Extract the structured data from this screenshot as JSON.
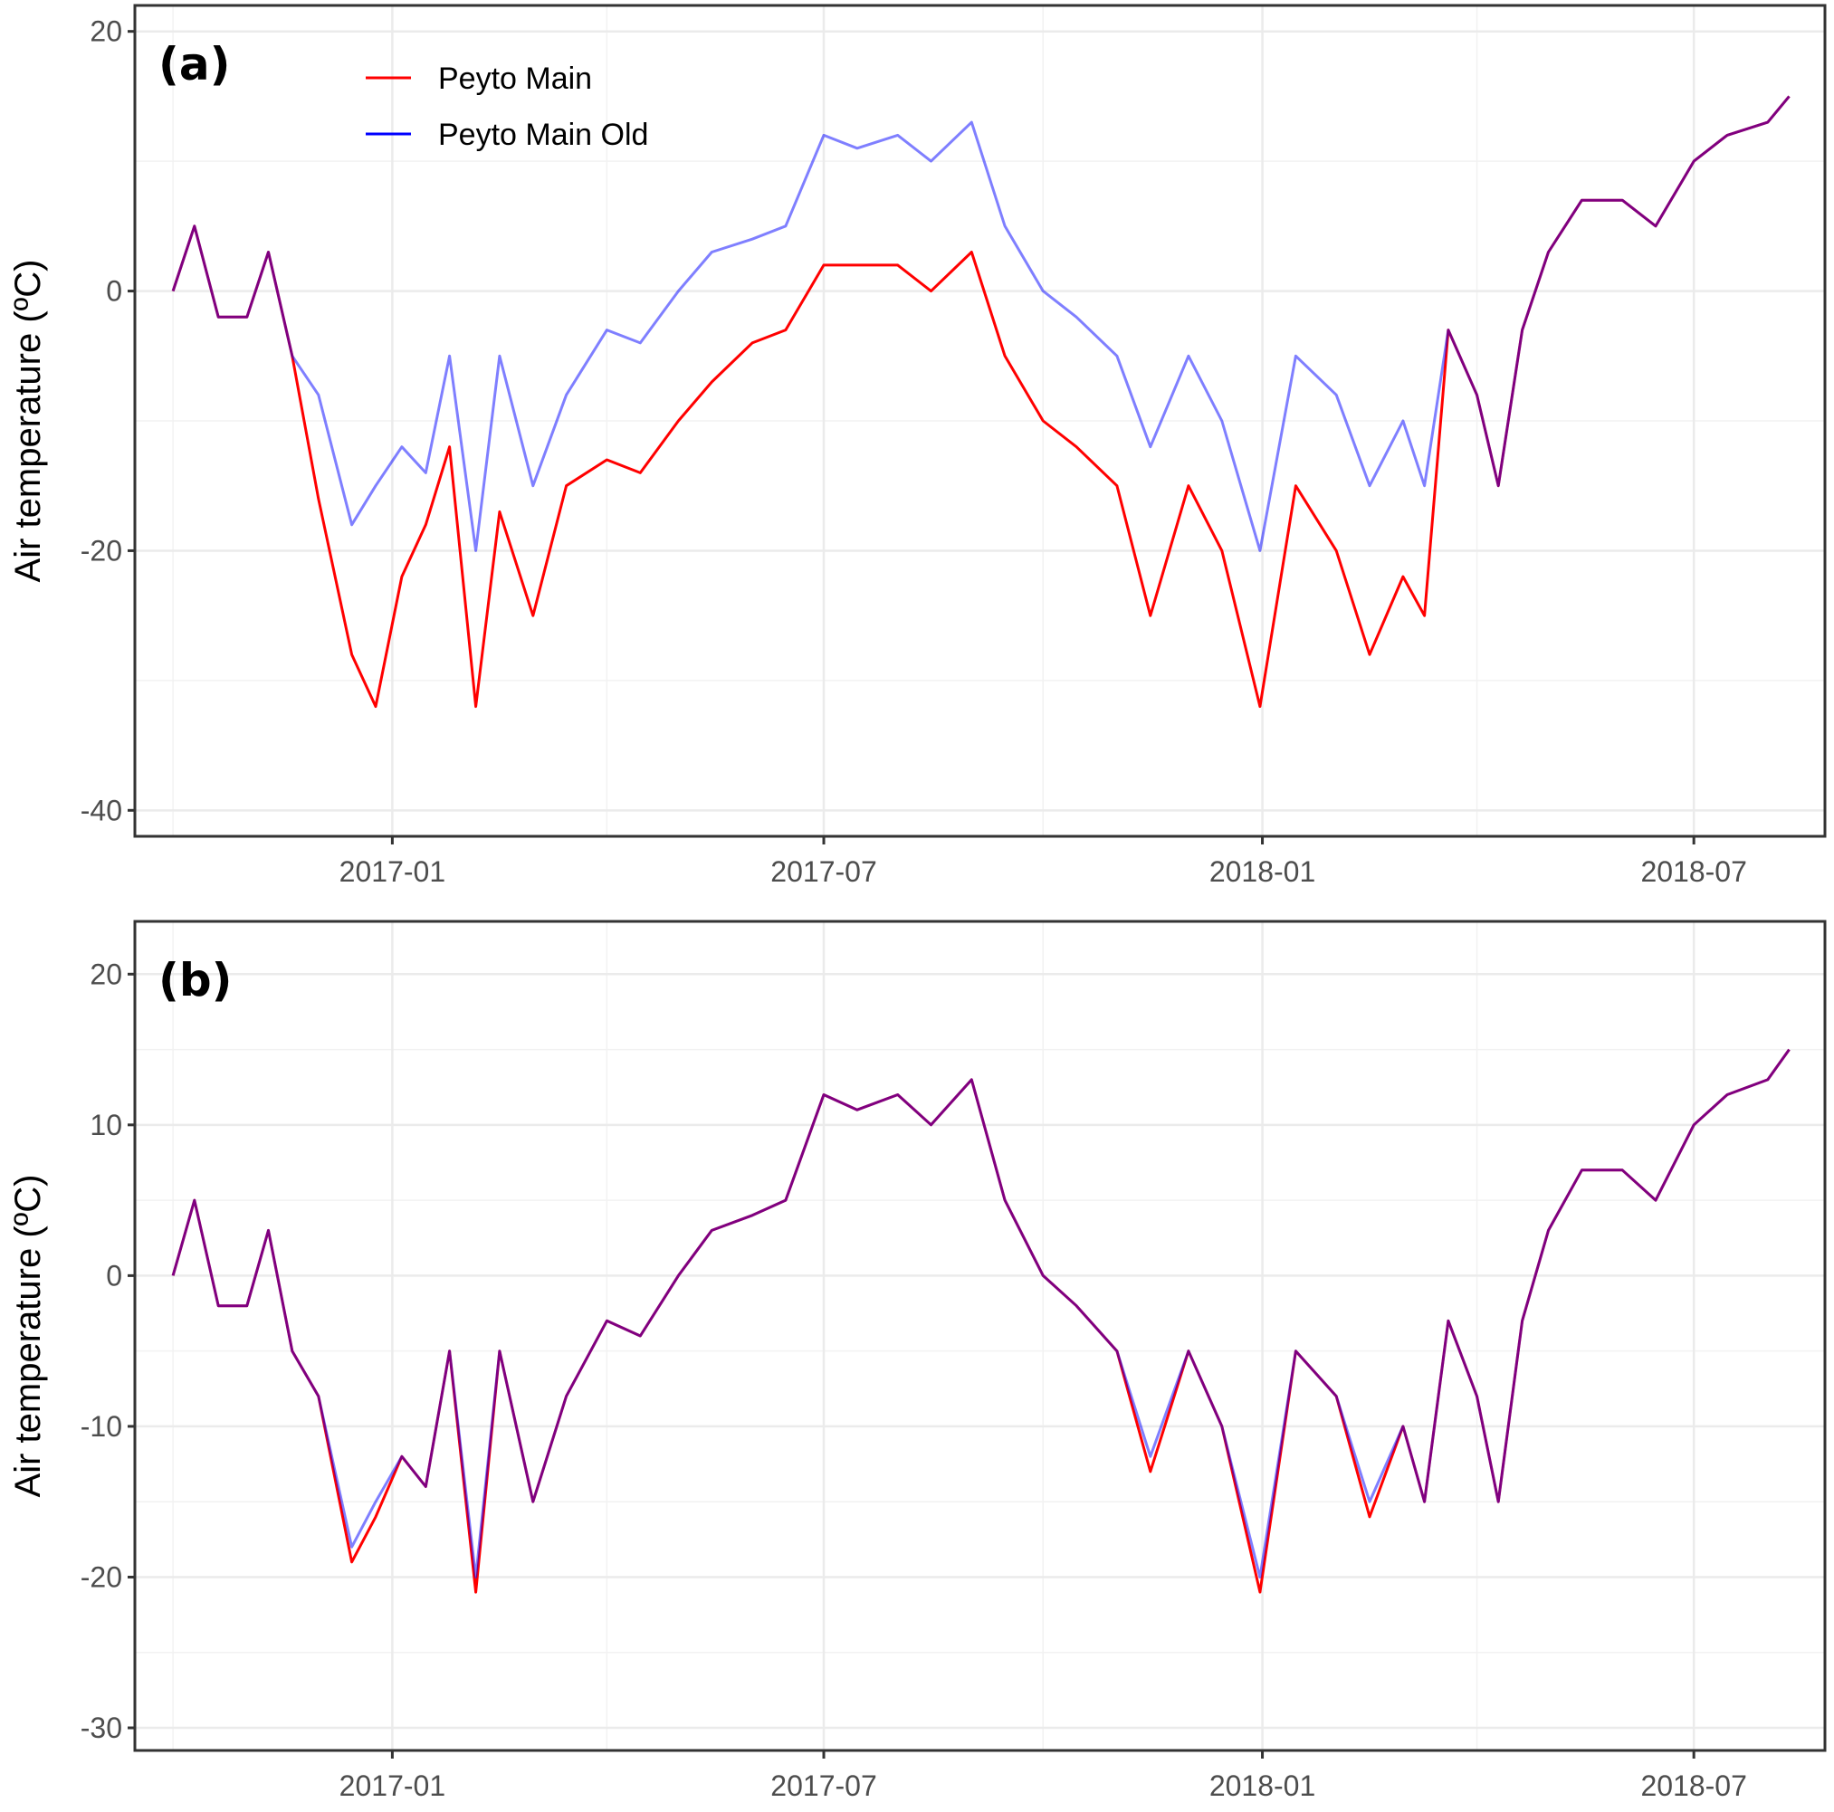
{
  "chart_data": [
    {
      "type": "line",
      "panel_label": "(a)",
      "ylabel": "Air temperature (ºC)",
      "xlabel": "",
      "xlim": [
        "2016-09-15",
        "2018-08-25"
      ],
      "ylim": [
        -42,
        22
      ],
      "yticks": [
        -40,
        -20,
        0,
        20
      ],
      "xticks": [
        "2017-01",
        "2017-07",
        "2018-01",
        "2018-07"
      ],
      "grid": true,
      "legend": {
        "placement": "top-left",
        "entries": [
          {
            "name": "Peyto Main",
            "color": "#FF0000"
          },
          {
            "name": "Peyto Main Old",
            "color": "#0000FF"
          }
        ]
      },
      "x": [
        "2016-10-01",
        "2016-10-10",
        "2016-10-20",
        "2016-11-01",
        "2016-11-10",
        "2016-11-20",
        "2016-12-01",
        "2016-12-15",
        "2016-12-25",
        "2017-01-05",
        "2017-01-15",
        "2017-01-25",
        "2017-02-05",
        "2017-02-15",
        "2017-03-01",
        "2017-03-15",
        "2017-04-01",
        "2017-04-15",
        "2017-05-01",
        "2017-05-15",
        "2017-06-01",
        "2017-06-15",
        "2017-07-01",
        "2017-07-15",
        "2017-08-01",
        "2017-08-15",
        "2017-09-01",
        "2017-09-15",
        "2017-10-01",
        "2017-10-15",
        "2017-11-01",
        "2017-11-15",
        "2017-12-01",
        "2017-12-15",
        "2017-12-31",
        "2018-01-15",
        "2018-02-01",
        "2018-02-15",
        "2018-03-01",
        "2018-03-10",
        "2018-03-20",
        "2018-04-01",
        "2018-04-10",
        "2018-04-20",
        "2018-05-01",
        "2018-05-15",
        "2018-06-01",
        "2018-06-15",
        "2018-07-01",
        "2018-07-15",
        "2018-08-01",
        "2018-08-10"
      ],
      "series": [
        {
          "name": "Peyto Main",
          "color": "#FF0000",
          "values": [
            0,
            5,
            -2,
            -2,
            3,
            -5,
            -16,
            -28,
            -32,
            -22,
            -18,
            -12,
            -32,
            -17,
            -25,
            -15,
            -13,
            -14,
            -10,
            -7,
            -4,
            -3,
            2,
            2,
            2,
            0,
            3,
            -5,
            -10,
            -12,
            -15,
            -25,
            -15,
            -20,
            -32,
            -15,
            -20,
            -28,
            -22,
            -25,
            -3,
            -8,
            -15,
            -3,
            3,
            7,
            7,
            5,
            10,
            12,
            13,
            15
          ]
        },
        {
          "name": "Peyto Main Old",
          "color": "#7B7BFF",
          "values": [
            0,
            5,
            -2,
            -2,
            3,
            -5,
            -8,
            -18,
            -15,
            -12,
            -14,
            -5,
            -20,
            -5,
            -15,
            -8,
            -3,
            -4,
            0,
            3,
            4,
            5,
            12,
            11,
            12,
            10,
            13,
            5,
            0,
            -2,
            -5,
            -12,
            -5,
            -10,
            -20,
            -5,
            -8,
            -15,
            -10,
            -15,
            -3,
            -8,
            -15,
            -3,
            3,
            7,
            7,
            5,
            10,
            12,
            13,
            15
          ]
        }
      ]
    },
    {
      "type": "line",
      "panel_label": "(b)",
      "ylabel": "Air temperature (ºC)",
      "xlabel": "",
      "xlim": [
        "2016-09-15",
        "2018-08-25"
      ],
      "ylim": [
        -31.5,
        23.5
      ],
      "yticks": [
        -30,
        -20,
        -10,
        0,
        10,
        20
      ],
      "xticks": [
        "2017-01",
        "2017-07",
        "2018-01",
        "2018-07"
      ],
      "grid": true,
      "x": [
        "2016-10-01",
        "2016-10-10",
        "2016-10-20",
        "2016-11-01",
        "2016-11-10",
        "2016-11-20",
        "2016-12-01",
        "2016-12-15",
        "2016-12-25",
        "2017-01-05",
        "2017-01-15",
        "2017-01-25",
        "2017-02-05",
        "2017-02-15",
        "2017-03-01",
        "2017-03-15",
        "2017-04-01",
        "2017-04-15",
        "2017-05-01",
        "2017-05-15",
        "2017-06-01",
        "2017-06-15",
        "2017-07-01",
        "2017-07-15",
        "2017-08-01",
        "2017-08-15",
        "2017-09-01",
        "2017-09-15",
        "2017-10-01",
        "2017-10-15",
        "2017-11-01",
        "2017-11-15",
        "2017-12-01",
        "2017-12-15",
        "2017-12-31",
        "2018-01-15",
        "2018-02-01",
        "2018-02-15",
        "2018-03-01",
        "2018-03-10",
        "2018-03-20",
        "2018-04-01",
        "2018-04-10",
        "2018-04-20",
        "2018-05-01",
        "2018-05-15",
        "2018-06-01",
        "2018-06-15",
        "2018-07-01",
        "2018-07-15",
        "2018-08-01",
        "2018-08-10"
      ],
      "series": [
        {
          "name": "Peyto Main",
          "color": "#FF0000",
          "values": [
            0,
            5,
            -2,
            -2,
            3,
            -5,
            -8,
            -19,
            -16,
            -12,
            -14,
            -5,
            -21,
            -5,
            -15,
            -8,
            -3,
            -4,
            0,
            3,
            4,
            5,
            12,
            11,
            12,
            10,
            13,
            5,
            0,
            -2,
            -5,
            -13,
            -5,
            -10,
            -21,
            -5,
            -8,
            -16,
            -10,
            -15,
            -3,
            -8,
            -15,
            -3,
            3,
            7,
            7,
            5,
            10,
            12,
            13,
            15
          ]
        },
        {
          "name": "Peyto Main Old",
          "color": "#7B7BFF",
          "values": [
            0,
            5,
            -2,
            -2,
            3,
            -5,
            -8,
            -18,
            -15,
            -12,
            -14,
            -5,
            -20,
            -5,
            -15,
            -8,
            -3,
            -4,
            0,
            3,
            4,
            5,
            12,
            11,
            12,
            10,
            13,
            5,
            0,
            -2,
            -5,
            -12,
            -5,
            -10,
            -20,
            -5,
            -8,
            -15,
            -10,
            -15,
            -3,
            -8,
            -15,
            -3,
            3,
            7,
            7,
            5,
            10,
            12,
            13,
            15
          ]
        }
      ]
    }
  ]
}
